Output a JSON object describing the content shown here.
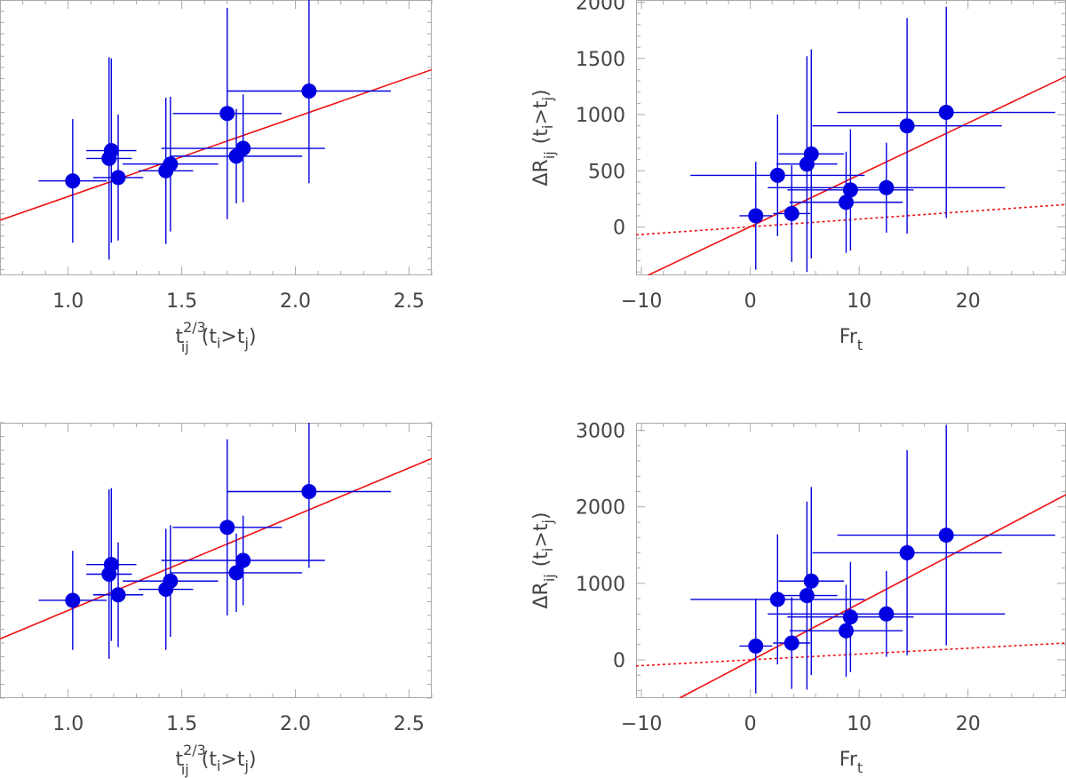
{
  "colors": {
    "points": "#0000e0",
    "fit": "#ee1111",
    "axis": "#aaaaaa",
    "text": "#444444"
  },
  "chart_data": [
    {
      "id": "top-left",
      "type": "scatter",
      "title": "",
      "xlabel": {
        "base": "t",
        "sub": "ij",
        "sup": "2/3",
        "suffix": "(t",
        "sub2": "i",
        "mid": ">t",
        "sub3": "j",
        "end": ")"
      },
      "ylabel": null,
      "xlim": [
        0.7,
        2.6
      ],
      "ylim": [
        -550,
        1900
      ],
      "x_major_ticks": [
        1.0,
        1.5,
        2.0,
        2.5
      ],
      "x_tick_labels": [
        "1.0",
        "1.5",
        "2.0",
        "2.5"
      ],
      "x_minor_step": 0.1,
      "y_major_ticks": [],
      "y_tick_labels": [],
      "y_minor_step": 100,
      "points": [
        {
          "x": 1.02,
          "y": 290,
          "xerr": 0.15,
          "yerr": 550
        },
        {
          "x": 1.18,
          "y": 490,
          "xerr": 0.1,
          "yerr": 900
        },
        {
          "x": 1.19,
          "y": 560,
          "xerr": 0.11,
          "yerr": 820
        },
        {
          "x": 1.22,
          "y": 320,
          "xerr": 0.11,
          "yerr": 560
        },
        {
          "x": 1.43,
          "y": 380,
          "xerr": 0.12,
          "yerr": 650
        },
        {
          "x": 1.45,
          "y": 440,
          "xerr": 0.21,
          "yerr": 600
        },
        {
          "x": 1.7,
          "y": 890,
          "xerr": 0.24,
          "yerr": 940
        },
        {
          "x": 1.74,
          "y": 510,
          "xerr": 0.29,
          "yerr": 420
        },
        {
          "x": 1.77,
          "y": 580,
          "xerr": 0.36,
          "yerr": 480
        },
        {
          "x": 2.06,
          "y": 1090,
          "xerr": 0.36,
          "yerr": 820
        }
      ],
      "lines": [
        {
          "name": "fit",
          "x": [
            0.7,
            2.6
          ],
          "y": [
            -60,
            1280
          ],
          "style": "solid"
        }
      ]
    },
    {
      "id": "top-right",
      "type": "scatter",
      "title": "",
      "xlabel": {
        "base": "Fr",
        "sub": "t"
      },
      "ylabel": {
        "delta": "ΔR",
        "sub": "ij",
        "suffix": "(t",
        "sub2": "i",
        "mid": ">t",
        "sub3": "j",
        "end": ")"
      },
      "xlim": [
        -10.5,
        29
      ],
      "ylim": [
        -430,
        2020
      ],
      "x_major_ticks": [
        -10,
        0,
        10,
        20
      ],
      "x_tick_labels": [
        "−10",
        "0",
        "10",
        "20"
      ],
      "x_minor_step": 2,
      "y_major_ticks": [
        0,
        500,
        1000,
        1500,
        2000
      ],
      "y_tick_labels": [
        "0",
        "500",
        "1000",
        "1500",
        "2000"
      ],
      "y_minor_step": 100,
      "points": [
        {
          "x": 0.5,
          "y": 100,
          "xerr": 1.5,
          "yerr": 480
        },
        {
          "x": 2.5,
          "y": 460,
          "xerr": 8.0,
          "yerr": 540
        },
        {
          "x": 3.8,
          "y": 120,
          "xerr": 1.7,
          "yerr": 430
        },
        {
          "x": 5.2,
          "y": 560,
          "xerr": 2.8,
          "yerr": 960
        },
        {
          "x": 5.6,
          "y": 650,
          "xerr": 3.0,
          "yerr": 930
        },
        {
          "x": 8.8,
          "y": 220,
          "xerr": 5.2,
          "yerr": 450
        },
        {
          "x": 9.2,
          "y": 330,
          "xerr": 5.8,
          "yerr": 540
        },
        {
          "x": 12.5,
          "y": 350,
          "xerr": 10.9,
          "yerr": 400
        },
        {
          "x": 14.4,
          "y": 900,
          "xerr": 8.7,
          "yerr": 960
        },
        {
          "x": 18.0,
          "y": 1020,
          "xerr": 10.0,
          "yerr": 940
        }
      ],
      "lines": [
        {
          "name": "fit",
          "x": [
            -9.4,
            29
          ],
          "y": [
            -430,
            1340
          ],
          "style": "solid"
        },
        {
          "name": "fit-dotted",
          "x": [
            -10.5,
            29
          ],
          "y": [
            -70,
            200
          ],
          "style": "dotted"
        }
      ]
    },
    {
      "id": "bottom-left",
      "type": "scatter",
      "title": "",
      "xlabel": {
        "base": "t",
        "sub": "ij",
        "sup": "2/3",
        "suffix": "(t",
        "sub2": "i",
        "mid": ">t",
        "sub3": "j",
        "end": ")"
      },
      "ylabel": null,
      "xlim": [
        0.7,
        2.6
      ],
      "ylim": [
        -1000,
        3000
      ],
      "x_major_ticks": [
        1.0,
        1.5,
        2.0,
        2.5
      ],
      "x_tick_labels": [
        "1.0",
        "1.5",
        "2.0",
        "2.5"
      ],
      "x_minor_step": 0.1,
      "y_major_ticks": [],
      "y_tick_labels": [],
      "y_minor_step": 200,
      "points": [
        {
          "x": 1.02,
          "y": 420,
          "xerr": 0.15,
          "yerr": 720
        },
        {
          "x": 1.18,
          "y": 800,
          "xerr": 0.1,
          "yerr": 1230
        },
        {
          "x": 1.19,
          "y": 940,
          "xerr": 0.11,
          "yerr": 1110
        },
        {
          "x": 1.22,
          "y": 500,
          "xerr": 0.11,
          "yerr": 760
        },
        {
          "x": 1.43,
          "y": 580,
          "xerr": 0.12,
          "yerr": 880
        },
        {
          "x": 1.45,
          "y": 700,
          "xerr": 0.21,
          "yerr": 810
        },
        {
          "x": 1.7,
          "y": 1480,
          "xerr": 0.24,
          "yerr": 1280
        },
        {
          "x": 1.74,
          "y": 820,
          "xerr": 0.29,
          "yerr": 570
        },
        {
          "x": 1.77,
          "y": 1000,
          "xerr": 0.36,
          "yerr": 650
        },
        {
          "x": 2.06,
          "y": 2000,
          "xerr": 0.36,
          "yerr": 1110
        }
      ],
      "lines": [
        {
          "name": "fit",
          "x": [
            0.7,
            2.6
          ],
          "y": [
            -140,
            2480
          ],
          "style": "solid"
        }
      ]
    },
    {
      "id": "bottom-right",
      "type": "scatter",
      "title": "",
      "xlabel": {
        "base": "Fr",
        "sub": "t"
      },
      "ylabel": {
        "delta": "ΔR",
        "sub": "ij",
        "suffix": "(t",
        "sub2": "i",
        "mid": ">t",
        "sub3": "j",
        "end": ")"
      },
      "xlim": [
        -10.5,
        29
      ],
      "ylim": [
        -500,
        3100
      ],
      "x_major_ticks": [
        -10,
        0,
        10,
        20
      ],
      "x_tick_labels": [
        "−10",
        "0",
        "10",
        "20"
      ],
      "x_minor_step": 2,
      "y_major_ticks": [
        0,
        1000,
        2000,
        3000
      ],
      "y_tick_labels": [
        "0",
        "1000",
        "2000",
        "3000"
      ],
      "y_minor_step": 200,
      "points": [
        {
          "x": 0.5,
          "y": 180,
          "xerr": 1.5,
          "yerr": 620
        },
        {
          "x": 2.5,
          "y": 790,
          "xerr": 8.0,
          "yerr": 850
        },
        {
          "x": 3.8,
          "y": 220,
          "xerr": 1.7,
          "yerr": 600
        },
        {
          "x": 5.2,
          "y": 840,
          "xerr": 2.8,
          "yerr": 1230
        },
        {
          "x": 5.6,
          "y": 1030,
          "xerr": 3.0,
          "yerr": 1230
        },
        {
          "x": 8.8,
          "y": 380,
          "xerr": 5.2,
          "yerr": 600
        },
        {
          "x": 9.2,
          "y": 560,
          "xerr": 5.8,
          "yerr": 720
        },
        {
          "x": 12.5,
          "y": 600,
          "xerr": 10.9,
          "yerr": 560
        },
        {
          "x": 14.4,
          "y": 1400,
          "xerr": 8.7,
          "yerr": 1340
        },
        {
          "x": 18.0,
          "y": 1630,
          "xerr": 10.0,
          "yerr": 1440
        }
      ],
      "lines": [
        {
          "name": "fit",
          "x": [
            -6.5,
            29
          ],
          "y": [
            -500,
            2160
          ],
          "style": "solid"
        },
        {
          "name": "fit-dotted",
          "x": [
            -10.5,
            29
          ],
          "y": [
            -80,
            220
          ],
          "style": "dotted"
        }
      ]
    }
  ]
}
